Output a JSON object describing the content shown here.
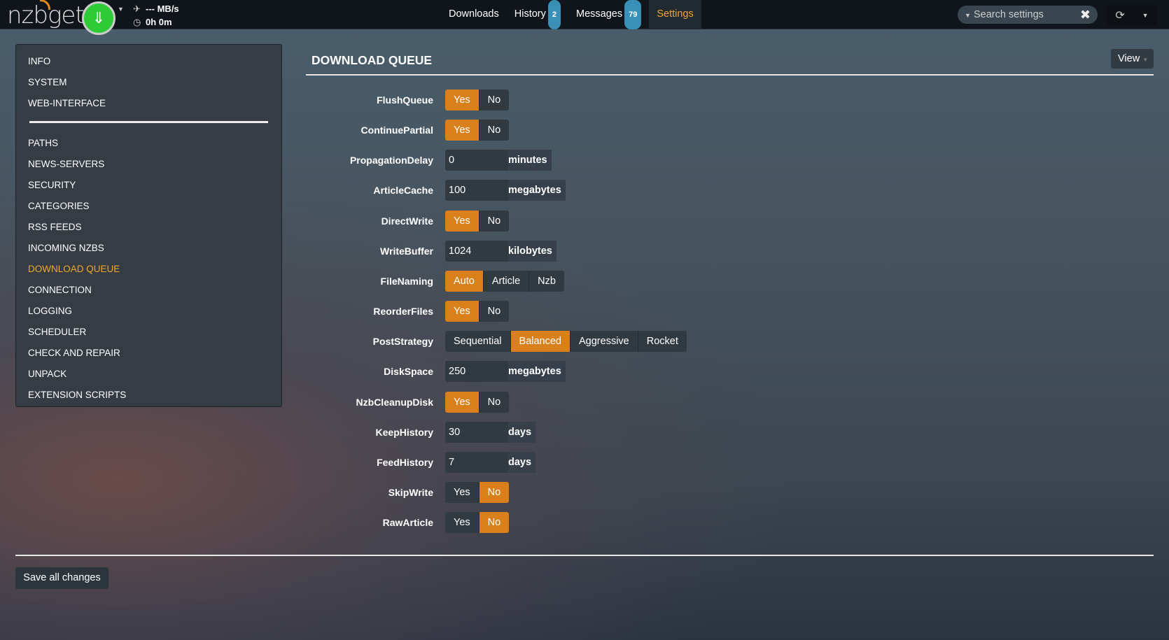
{
  "app": {
    "logo": "nzbget",
    "speed": "--- MB/s",
    "time": "0h 0m"
  },
  "nav": [
    {
      "label": "Downloads"
    },
    {
      "label": "History",
      "badge": "2"
    },
    {
      "label": "Messages",
      "badge": "79"
    },
    {
      "label": "Settings",
      "active": true
    }
  ],
  "search": {
    "placeholder": "Search settings"
  },
  "sidebar": {
    "top": [
      "INFO",
      "SYSTEM",
      "WEB-INTERFACE"
    ],
    "items": [
      "PATHS",
      "NEWS-SERVERS",
      "SECURITY",
      "CATEGORIES",
      "RSS FEEDS",
      "INCOMING NZBS",
      "DOWNLOAD QUEUE",
      "CONNECTION",
      "LOGGING",
      "SCHEDULER",
      "CHECK AND REPAIR",
      "UNPACK",
      "EXTENSION SCRIPTS"
    ],
    "active": "DOWNLOAD QUEUE"
  },
  "section": {
    "title": "DOWNLOAD QUEUE",
    "view_label": "View"
  },
  "settings": [
    {
      "name": "FlushQueue",
      "options": [
        "Yes",
        "No"
      ],
      "value": "Yes"
    },
    {
      "name": "ContinuePartial",
      "options": [
        "Yes",
        "No"
      ],
      "value": "Yes"
    },
    {
      "name": "PropagationDelay",
      "input": "0",
      "unit": "minutes"
    },
    {
      "name": "ArticleCache",
      "input": "100",
      "unit": "megabytes"
    },
    {
      "name": "DirectWrite",
      "options": [
        "Yes",
        "No"
      ],
      "value": "Yes"
    },
    {
      "name": "WriteBuffer",
      "input": "1024",
      "unit": "kilobytes"
    },
    {
      "name": "FileNaming",
      "options": [
        "Auto",
        "Article",
        "Nzb"
      ],
      "value": "Auto"
    },
    {
      "name": "ReorderFiles",
      "options": [
        "Yes",
        "No"
      ],
      "value": "Yes"
    },
    {
      "name": "PostStrategy",
      "options": [
        "Sequential",
        "Balanced",
        "Aggressive",
        "Rocket"
      ],
      "value": "Balanced"
    },
    {
      "name": "DiskSpace",
      "input": "250",
      "unit": "megabytes"
    },
    {
      "name": "NzbCleanupDisk",
      "options": [
        "Yes",
        "No"
      ],
      "value": "Yes"
    },
    {
      "name": "KeepHistory",
      "input": "30",
      "unit": "days"
    },
    {
      "name": "FeedHistory",
      "input": "7",
      "unit": "days"
    },
    {
      "name": "SkipWrite",
      "options": [
        "Yes",
        "No"
      ],
      "value": "No"
    },
    {
      "name": "RawArticle",
      "options": [
        "Yes",
        "No"
      ],
      "value": "No"
    }
  ],
  "footer": {
    "save_label": "Save all changes"
  },
  "colors": {
    "accent": "#d9801c",
    "active_text": "#f2a72d",
    "badge": "#3a8fb7",
    "play": "#2ecb36"
  }
}
